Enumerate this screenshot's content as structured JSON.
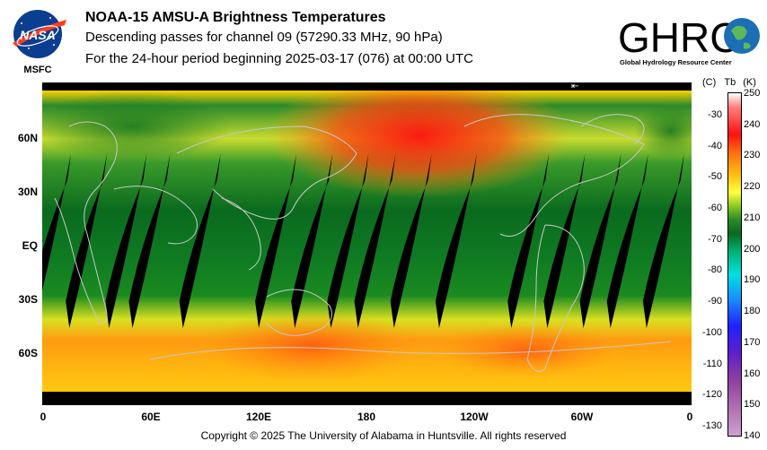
{
  "header": {
    "title": "NOAA-15 AMSU-A Brightness Temperatures",
    "subtitle1": "Descending passes for channel 09 (57290.33 MHz, 90 hPa)",
    "subtitle2": "For the 24-hour period beginning 2025-03-17 (076) at 00:00 UTC"
  },
  "logos": {
    "nasa_word": "NASA",
    "msfc": "MSFC",
    "ghrc_word": "GHRC",
    "ghrc_full": "Global Hydrology Resource Center"
  },
  "map": {
    "lat_labels": [
      "60N",
      "30N",
      "EQ",
      "30S",
      "60S"
    ],
    "lon_labels": [
      "0",
      "60E",
      "120E",
      "180",
      "120W",
      "60W",
      "0"
    ],
    "gap_longitudes": [
      5,
      25,
      47,
      60,
      88,
      130,
      150,
      170,
      185,
      205,
      230,
      270,
      290,
      310,
      325,
      345
    ]
  },
  "colorbar": {
    "header_c": "(C)",
    "header_tb": "Tb",
    "header_k": "(K)",
    "celsius_ticks": [
      "-30",
      "-40",
      "-50",
      "-60",
      "-70",
      "-80",
      "-90",
      "-100",
      "-110",
      "-120",
      "-130"
    ],
    "kelvin_ticks": [
      "250",
      "240",
      "230",
      "220",
      "210",
      "200",
      "190",
      "180",
      "170",
      "160",
      "150",
      "140"
    ],
    "k_min": 140,
    "k_max": 250
  },
  "footer": {
    "copyright": "Copyright © 2025 The University of Alabama in Huntsville.  All rights reserved"
  }
}
